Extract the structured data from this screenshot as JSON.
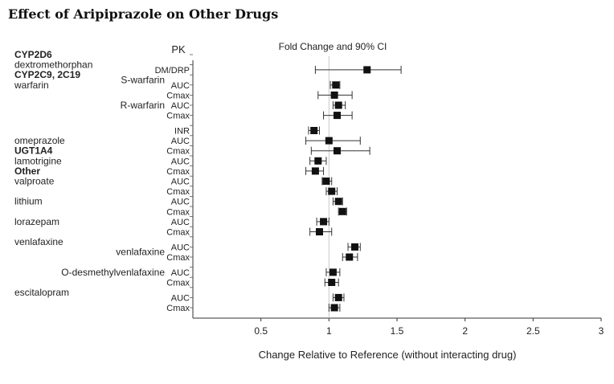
{
  "page": {
    "title": "Effect of Aripiprazole on Other Drugs"
  },
  "chart_data": {
    "type": "forest",
    "title": "Effect of Aripiprazole on Other Drugs",
    "pk_header": "PK",
    "ci_header": "Fold Change and 90% CI",
    "xlabel": "Change Relative to Reference (without interacting drug)",
    "xlim": [
      0.0,
      3.0
    ],
    "reference_line": 1.0,
    "x_ticks": [
      {
        "value": 0.5,
        "label": "0.5"
      },
      {
        "value": 1,
        "label": "1"
      },
      {
        "value": 1.5,
        "label": "1.5"
      },
      {
        "value": 2,
        "label": "2"
      },
      {
        "value": 2.5,
        "label": "2.5"
      },
      {
        "value": 3,
        "label": "3"
      }
    ],
    "row_labels": [
      {
        "text": "CYP2D6",
        "bold": true,
        "row": 0,
        "side": "category"
      },
      {
        "text": "dextromethorphan",
        "bold": false,
        "row": 1,
        "side": "category"
      },
      {
        "text": "CYP2C9, 2C19",
        "bold": true,
        "row": 2,
        "side": "category"
      },
      {
        "text": "warfarin",
        "bold": false,
        "row": 3,
        "side": "category"
      },
      {
        "text": "S-warfarin",
        "bold": false,
        "row": 2.5,
        "side": "subdrug"
      },
      {
        "text": "R-warfarin",
        "bold": false,
        "row": 5,
        "side": "subdrug"
      },
      {
        "text": "omeprazole",
        "bold": false,
        "row": 8.5,
        "side": "category"
      },
      {
        "text": "UGT1A4",
        "bold": true,
        "row": 9.5,
        "side": "category"
      },
      {
        "text": "lamotrigine",
        "bold": false,
        "row": 10.5,
        "side": "category"
      },
      {
        "text": "Other",
        "bold": true,
        "row": 11.5,
        "side": "category"
      },
      {
        "text": "valproate",
        "bold": false,
        "row": 12.5,
        "side": "category"
      },
      {
        "text": "lithium",
        "bold": false,
        "row": 14.5,
        "side": "category"
      },
      {
        "text": "lorazepam",
        "bold": false,
        "row": 16.5,
        "side": "category"
      },
      {
        "text": "venlafaxine",
        "bold": false,
        "row": 18.5,
        "side": "category"
      },
      {
        "text": "venlafaxine",
        "bold": false,
        "row": 19.5,
        "side": "subdrug"
      },
      {
        "text": "O-desmethylvenlafaxine",
        "bold": false,
        "row": 21.5,
        "side": "subdrug"
      },
      {
        "text": "escitalopram",
        "bold": false,
        "row": 23.5,
        "side": "category"
      }
    ],
    "series": [
      {
        "pk": "DM/DRP",
        "row": 1.5,
        "estimate": 1.28,
        "ci": [
          0.9,
          1.53
        ]
      },
      {
        "pk": "AUC",
        "row": 3,
        "estimate": 1.05,
        "ci": [
          1.01,
          1.08
        ]
      },
      {
        "pk": "Cmax",
        "row": 4,
        "estimate": 1.04,
        "ci": [
          0.92,
          1.17
        ]
      },
      {
        "pk": "AUC",
        "row": 5,
        "estimate": 1.07,
        "ci": [
          1.03,
          1.12
        ]
      },
      {
        "pk": "Cmax",
        "row": 6,
        "estimate": 1.06,
        "ci": [
          0.96,
          1.17
        ]
      },
      {
        "pk": "INR",
        "row": 7.5,
        "estimate": 0.89,
        "ci": [
          0.85,
          0.93
        ]
      },
      {
        "pk": "AUC",
        "row": 8.5,
        "estimate": 1.0,
        "ci": [
          0.83,
          1.23
        ]
      },
      {
        "pk": "Cmax",
        "row": 9.5,
        "estimate": 1.06,
        "ci": [
          0.87,
          1.3
        ]
      },
      {
        "pk": "AUC",
        "row": 10.5,
        "estimate": 0.92,
        "ci": [
          0.86,
          0.98
        ]
      },
      {
        "pk": "Cmax",
        "row": 11.5,
        "estimate": 0.9,
        "ci": [
          0.83,
          0.96
        ]
      },
      {
        "pk": "AUC",
        "row": 12.5,
        "estimate": 0.98,
        "ci": [
          0.95,
          1.02
        ]
      },
      {
        "pk": "Cmax",
        "row": 13.5,
        "estimate": 1.02,
        "ci": [
          0.98,
          1.06
        ]
      },
      {
        "pk": "AUC",
        "row": 14.5,
        "estimate": 1.07,
        "ci": [
          1.03,
          1.1
        ]
      },
      {
        "pk": "Cmax",
        "row": 15.5,
        "estimate": 1.1,
        "ci": [
          1.07,
          1.13
        ]
      },
      {
        "pk": "AUC",
        "row": 16.5,
        "estimate": 0.96,
        "ci": [
          0.91,
          1.0
        ]
      },
      {
        "pk": "Cmax",
        "row": 17.5,
        "estimate": 0.93,
        "ci": [
          0.86,
          1.02
        ]
      },
      {
        "pk": "AUC",
        "row": 19,
        "estimate": 1.19,
        "ci": [
          1.14,
          1.23
        ]
      },
      {
        "pk": "Cmax",
        "row": 20,
        "estimate": 1.15,
        "ci": [
          1.1,
          1.21
        ]
      },
      {
        "pk": "AUC",
        "row": 21.5,
        "estimate": 1.03,
        "ci": [
          0.98,
          1.08
        ]
      },
      {
        "pk": "Cmax",
        "row": 22.5,
        "estimate": 1.02,
        "ci": [
          0.97,
          1.07
        ]
      },
      {
        "pk": "AUC",
        "row": 24,
        "estimate": 1.07,
        "ci": [
          1.03,
          1.11
        ]
      },
      {
        "pk": "Cmax",
        "row": 25,
        "estimate": 1.04,
        "ci": [
          1.0,
          1.08
        ]
      }
    ]
  }
}
